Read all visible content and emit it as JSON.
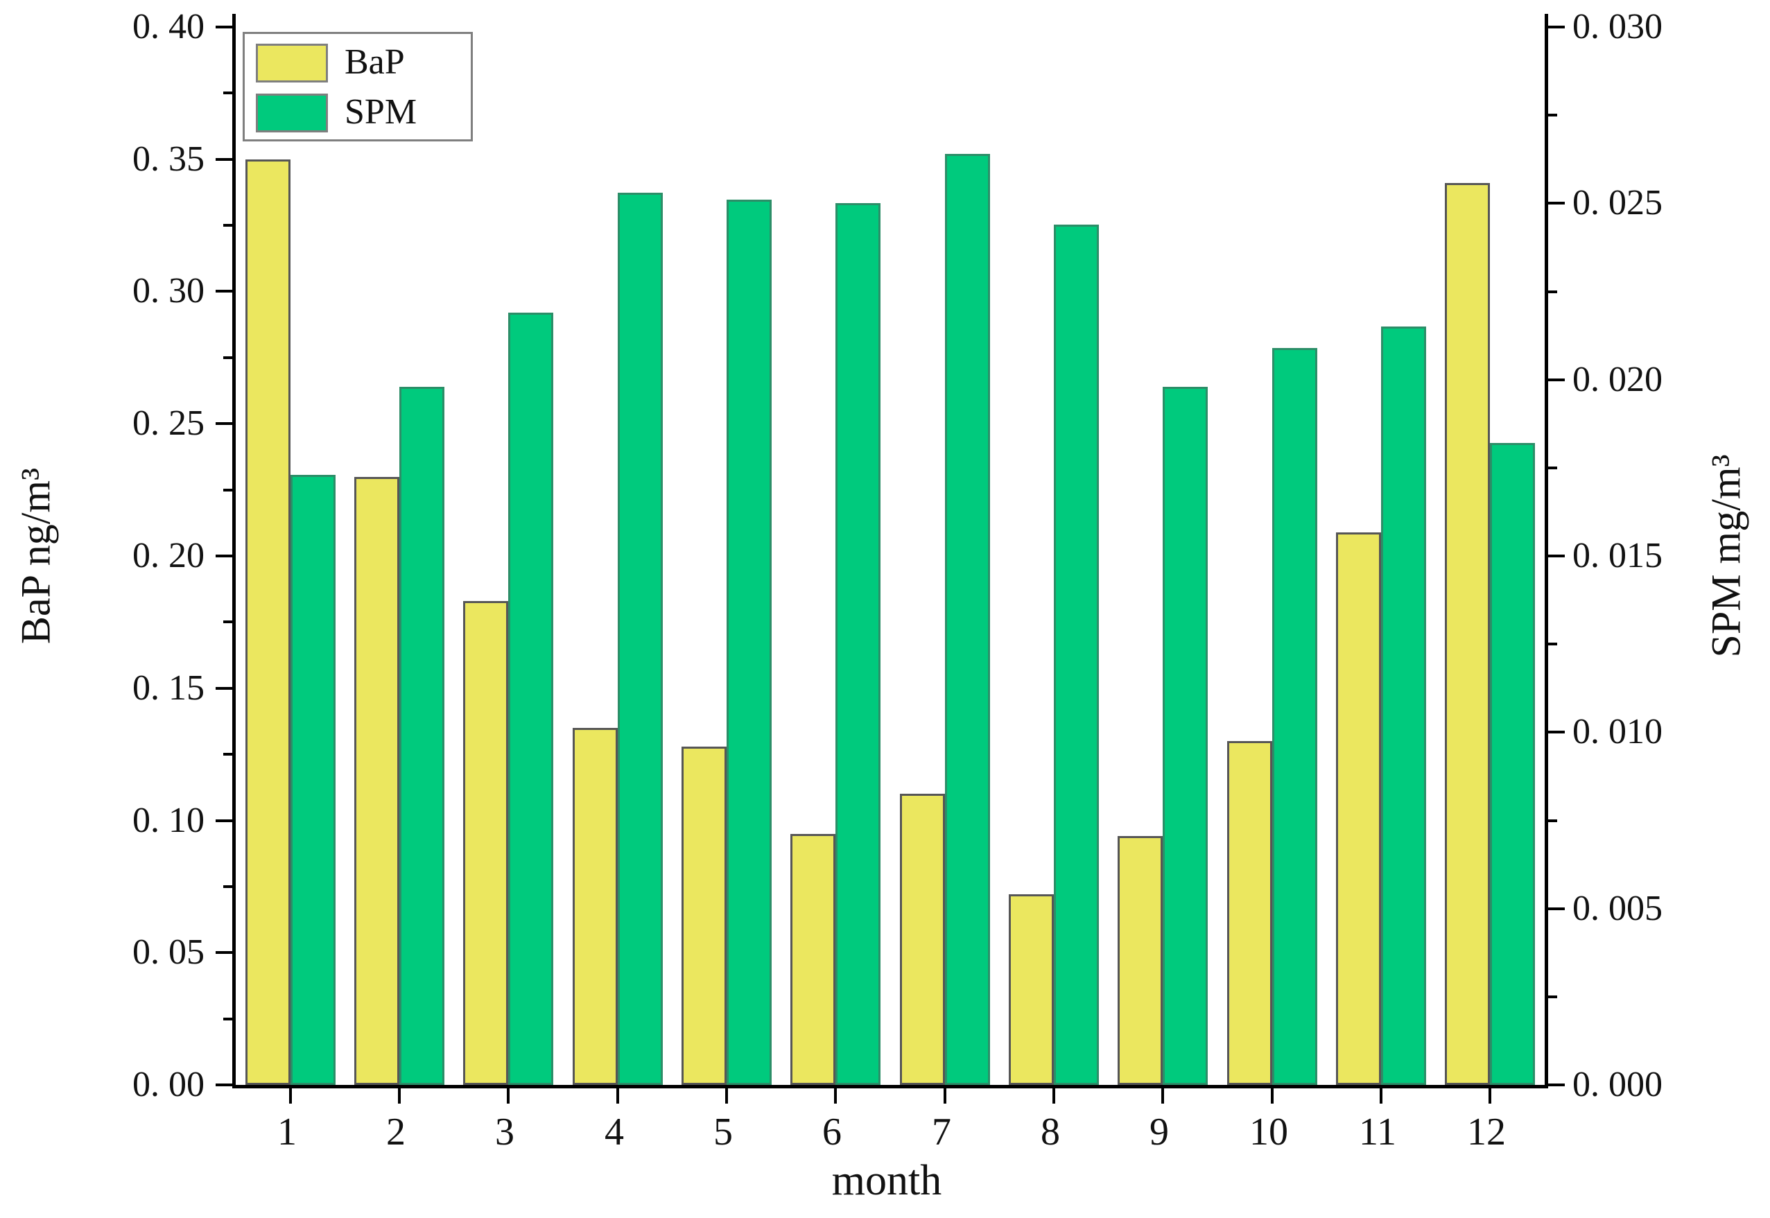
{
  "chart_data": {
    "type": "bar",
    "title": "",
    "grid": false,
    "categories": [
      "1",
      "2",
      "3",
      "4",
      "5",
      "6",
      "7",
      "8",
      "9",
      "10",
      "11",
      "12"
    ],
    "series": [
      {
        "name": "BaP",
        "axis": "left",
        "color": "#ebe75f",
        "border_color": "#565656",
        "values": [
          0.35,
          0.23,
          0.183,
          0.135,
          0.128,
          0.095,
          0.11,
          0.072,
          0.094,
          0.13,
          0.209,
          0.341
        ]
      },
      {
        "name": "SPM",
        "axis": "right",
        "color": "#00ca7d",
        "border_color": "#2c8e68",
        "values": [
          0.0173,
          0.0198,
          0.0219,
          0.0253,
          0.0251,
          0.025,
          0.0264,
          0.0244,
          0.0198,
          0.0209,
          0.0215,
          0.0182
        ]
      }
    ],
    "left_axis": {
      "label": "BaP ng/m³",
      "min": 0,
      "max": 0.4,
      "major_step": 0.05,
      "minor_step": 0.025,
      "tick_labels": [
        "0. 00",
        "0. 05",
        "0. 10",
        "0. 15",
        "0. 20",
        "0. 25",
        "0. 30",
        "0. 35",
        "0. 40"
      ]
    },
    "right_axis": {
      "label": "SPM mg/m³",
      "min": 0,
      "max": 0.03,
      "major_step": 0.005,
      "minor_step": 0.0025,
      "tick_labels": [
        "0. 000",
        "0. 005",
        "0. 010",
        "0. 015",
        "0. 020",
        "0. 025",
        "0. 030"
      ]
    },
    "x_axis": {
      "label": "month"
    },
    "legend": {
      "position": "top-left",
      "entries": [
        "BaP",
        "SPM"
      ]
    }
  }
}
